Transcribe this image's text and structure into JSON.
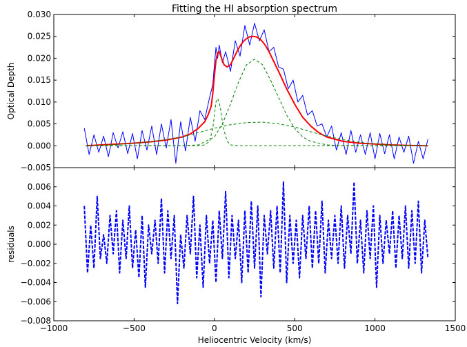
{
  "chart_data": [
    {
      "type": "line",
      "title": "Fitting the HI absorption spectrum",
      "xlabel": "",
      "ylabel": "Optical Depth",
      "xlim": [
        -1000,
        1500
      ],
      "ylim": [
        -0.005,
        0.03
      ],
      "yticks": [
        "−0.005",
        "0.000",
        "0.005",
        "0.010",
        "0.015",
        "0.020",
        "0.025",
        "0.030"
      ],
      "grid": false,
      "legend": "none",
      "series": [
        {
          "style": "solid",
          "color": "#0000ff",
          "x": [
            -810,
            -780,
            -750,
            -720,
            -690,
            -660,
            -630,
            -600,
            -570,
            -540,
            -510,
            -480,
            -450,
            -420,
            -390,
            -360,
            -330,
            -300,
            -270,
            -240,
            -210,
            -180,
            -150,
            -120,
            -90,
            -60,
            -30,
            -10,
            0,
            10,
            20,
            30,
            50,
            70,
            100,
            130,
            160,
            190,
            220,
            250,
            280,
            310,
            340,
            370,
            400,
            430,
            460,
            490,
            520,
            550,
            580,
            610,
            640,
            670,
            700,
            730,
            760,
            790,
            820,
            850,
            880,
            910,
            940,
            970,
            1000,
            1030,
            1060,
            1090,
            1120,
            1150,
            1180,
            1210,
            1240,
            1270,
            1300,
            1330
          ],
          "y": [
            0.004,
            -0.002,
            0.0025,
            -0.0015,
            0.0022,
            -0.0025,
            0.003,
            -0.0005,
            0.0032,
            -0.0018,
            0.0028,
            -0.003,
            0.0035,
            -0.001,
            0.0045,
            -0.002,
            0.005,
            -0.0005,
            0.006,
            -0.004,
            0.0055,
            -0.0012,
            0.0065,
            0.001,
            0.008,
            0.006,
            0.011,
            0.014,
            0.0185,
            0.0225,
            0.02,
            0.023,
            0.019,
            0.0215,
            0.017,
            0.024,
            0.0205,
            0.0275,
            0.023,
            0.028,
            0.024,
            0.0265,
            0.0215,
            0.0225,
            0.018,
            0.0175,
            0.013,
            0.015,
            0.01,
            0.0115,
            0.007,
            0.008,
            0.0045,
            0.005,
            0.002,
            0.0045,
            -0.001,
            0.003,
            -0.002,
            0.0035,
            -0.0015,
            0.0025,
            -0.002,
            0.003,
            -0.003,
            0.0028,
            -0.0018,
            0.0025,
            -0.003,
            0.002,
            -0.0015,
            0.0022,
            -0.004,
            0.001,
            -0.003,
            0.0015
          ]
        },
        {
          "style": "solid",
          "color": "#ff0000",
          "x": [
            -800,
            -700,
            -600,
            -500,
            -400,
            -300,
            -200,
            -150,
            -100,
            -60,
            -40,
            -20,
            -10,
            0,
            10,
            20,
            30,
            40,
            60,
            80,
            100,
            120,
            140,
            160,
            180,
            200,
            220,
            240,
            260,
            280,
            300,
            320,
            340,
            360,
            400,
            450,
            500,
            550,
            600,
            650,
            700,
            800,
            900,
            1000,
            1100,
            1200,
            1330
          ],
          "y": [
            0.0,
            0.0002,
            0.0004,
            0.0006,
            0.0009,
            0.0013,
            0.002,
            0.0027,
            0.004,
            0.0055,
            0.007,
            0.009,
            0.012,
            0.016,
            0.0195,
            0.0212,
            0.0215,
            0.0205,
            0.0185,
            0.018,
            0.0185,
            0.02,
            0.0215,
            0.0228,
            0.0238,
            0.0245,
            0.0249,
            0.025,
            0.0249,
            0.0245,
            0.0238,
            0.0228,
            0.0215,
            0.02,
            0.017,
            0.013,
            0.0095,
            0.0065,
            0.0045,
            0.003,
            0.002,
            0.001,
            0.0006,
            0.0004,
            0.0002,
            0.0001,
            0.0
          ]
        },
        {
          "style": "dashed",
          "color": "#008000",
          "x": [
            -800,
            -100,
            -60,
            -30,
            -10,
            0,
            10,
            20,
            30,
            40,
            50,
            60,
            80,
            100,
            150,
            1330
          ],
          "y": [
            0.0,
            0.0,
            0.0002,
            0.001,
            0.004,
            0.007,
            0.01,
            0.0108,
            0.01,
            0.008,
            0.0055,
            0.0035,
            0.001,
            0.0002,
            0.0,
            0.0
          ]
        },
        {
          "style": "dashed",
          "color": "#008000",
          "x": [
            -800,
            -200,
            -100,
            0,
            50,
            100,
            150,
            200,
            250,
            300,
            350,
            400,
            450,
            500,
            550,
            600,
            700,
            800,
            1330
          ],
          "y": [
            0.0,
            0.0,
            0.0002,
            0.002,
            0.005,
            0.0095,
            0.0145,
            0.0185,
            0.0198,
            0.0185,
            0.015,
            0.011,
            0.007,
            0.004,
            0.002,
            0.001,
            0.0002,
            0.0,
            0.0
          ]
        },
        {
          "style": "dashed",
          "color": "#008000",
          "x": [
            -800,
            -600,
            -400,
            -200,
            -100,
            0,
            100,
            200,
            300,
            400,
            500,
            600,
            700,
            800,
            900,
            1000,
            1100,
            1200,
            1330
          ],
          "y": [
            0.0,
            0.0003,
            0.0009,
            0.002,
            0.003,
            0.004,
            0.0048,
            0.0053,
            0.0054,
            0.005,
            0.0043,
            0.0032,
            0.0022,
            0.0014,
            0.0008,
            0.0004,
            0.0002,
            0.0001,
            0.0
          ]
        }
      ]
    },
    {
      "type": "line",
      "title": "",
      "xlabel": "Heliocentric Velocity (km/s)",
      "ylabel": "residuals",
      "xlim": [
        -1000,
        1500
      ],
      "ylim": [
        -0.008,
        0.008
      ],
      "xticks": [
        "−1000",
        "−500",
        "0",
        "500",
        "1000",
        "1500"
      ],
      "yticks": [
        "−0.008",
        "−0.006",
        "−0.004",
        "−0.002",
        "0.000",
        "0.002",
        "0.004",
        "0.006"
      ],
      "grid": false,
      "legend": "none",
      "series": [
        {
          "style": "dashed",
          "color": "#0000ff",
          "x": [
            -810,
            -790,
            -770,
            -750,
            -730,
            -710,
            -690,
            -670,
            -650,
            -630,
            -610,
            -590,
            -570,
            -550,
            -530,
            -510,
            -490,
            -470,
            -450,
            -430,
            -410,
            -390,
            -370,
            -350,
            -330,
            -310,
            -290,
            -270,
            -250,
            -230,
            -210,
            -190,
            -170,
            -150,
            -130,
            -110,
            -90,
            -70,
            -50,
            -30,
            -10,
            10,
            30,
            50,
            70,
            90,
            110,
            130,
            150,
            170,
            190,
            210,
            230,
            250,
            270,
            290,
            310,
            330,
            350,
            370,
            390,
            410,
            430,
            450,
            470,
            490,
            510,
            530,
            550,
            570,
            590,
            610,
            630,
            650,
            670,
            690,
            710,
            730,
            750,
            770,
            790,
            810,
            830,
            850,
            870,
            890,
            910,
            930,
            950,
            970,
            990,
            1010,
            1030,
            1050,
            1070,
            1090,
            1110,
            1130,
            1150,
            1170,
            1190,
            1210,
            1230,
            1250,
            1270,
            1290,
            1310,
            1330
          ],
          "y": [
            0.004,
            -0.003,
            0.002,
            -0.0025,
            0.005,
            -0.0015,
            0.001,
            -0.002,
            0.003,
            -0.001,
            0.0035,
            -0.003,
            0.0025,
            -0.0015,
            0.004,
            -0.0025,
            0.0015,
            -0.0035,
            0.003,
            -0.0045,
            0.002,
            -0.001,
            0.0025,
            -0.002,
            0.0048,
            -0.003,
            0.0035,
            -0.0015,
            0.003,
            -0.0062,
            0.001,
            -0.0025,
            0.003,
            -0.001,
            0.005,
            -0.0035,
            0.002,
            -0.0045,
            0.003,
            -0.002,
            0.0025,
            -0.004,
            0.0035,
            -0.0015,
            0.0055,
            -0.0035,
            0.003,
            -0.0015,
            0.0025,
            -0.004,
            0.0035,
            -0.003,
            0.0045,
            -0.0025,
            0.004,
            -0.0055,
            0.003,
            -0.001,
            0.0035,
            -0.0025,
            0.004,
            -0.003,
            0.0065,
            -0.004,
            0.003,
            -0.002,
            0.0025,
            -0.0035,
            0.003,
            -0.0015,
            0.004,
            -0.0025,
            0.0035,
            -0.002,
            0.0045,
            -0.003,
            0.0025,
            -0.0015,
            0.003,
            -0.002,
            0.004,
            -0.0025,
            0.003,
            -0.001,
            0.0065,
            -0.002,
            0.0025,
            -0.003,
            0.0035,
            -0.0015,
            0.004,
            -0.0045,
            0.003,
            -0.002,
            0.0025,
            -0.001,
            0.0035,
            -0.0025,
            0.003,
            -0.0015,
            0.004,
            -0.0025,
            0.0035,
            -0.002,
            0.0045,
            -0.003,
            0.0025,
            -0.0015
          ]
        }
      ]
    }
  ]
}
